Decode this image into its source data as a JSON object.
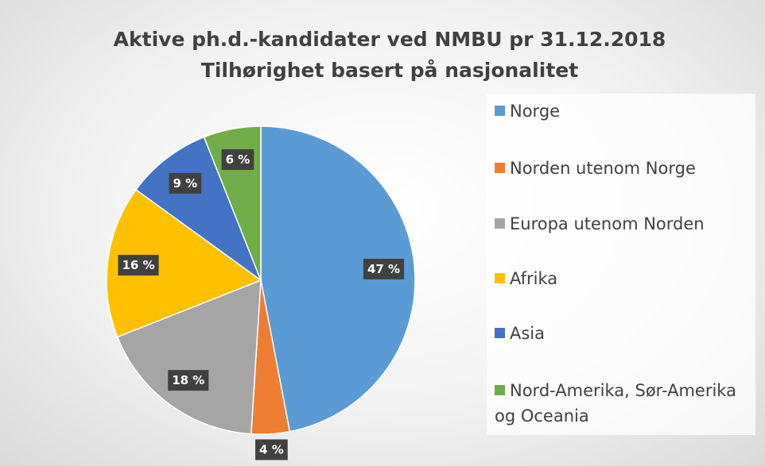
{
  "chart_data": {
    "type": "pie",
    "title": "Aktive ph.d.-kandidater ved NMBU pr 31.12.2018",
    "subtitle": "Tilhørighet basert på nasjonalitet",
    "categories": [
      "Norge",
      "Norden utenom Norge",
      "Europa utenom Norden",
      "Afrika",
      "Asia",
      "Nord-Amerika, Sør-Amerika og Oceania"
    ],
    "values": [
      47,
      4,
      18,
      16,
      9,
      6
    ],
    "value_labels": [
      "47 %",
      "4 %",
      "18 %",
      "16 %",
      "9 %",
      "6 %"
    ],
    "colors": [
      "#5b9bd5",
      "#ed7d31",
      "#a5a5a5",
      "#ffc000",
      "#4472c4",
      "#70ad47"
    ],
    "legend": "right"
  }
}
